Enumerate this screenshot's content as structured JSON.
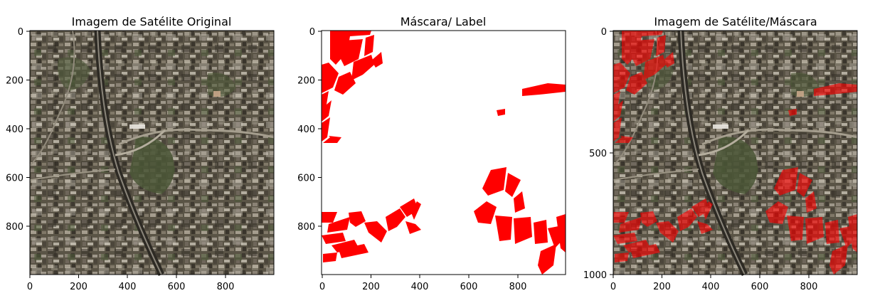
{
  "figure": {
    "panels": [
      {
        "title": "Imagem de Satélite Original",
        "content": "satellite-image",
        "xticks": [
          "0",
          "200",
          "400",
          "600",
          "800"
        ],
        "yticks": [
          "0",
          "200",
          "400",
          "600",
          "800"
        ]
      },
      {
        "title": "Máscara/ Label",
        "content": "mask",
        "xticks": [
          "0",
          "200",
          "400",
          "600",
          "800"
        ],
        "yticks": [
          "0",
          "200",
          "400",
          "600",
          "800"
        ]
      },
      {
        "title": "Imagem de Satélite/Máscara",
        "content": "overlay",
        "xticks": [
          "0",
          "200",
          "400",
          "600",
          "800"
        ],
        "yticks": [
          "0",
          "500",
          "1000"
        ]
      }
    ],
    "colors": {
      "mask_fill": "#ff0000",
      "satellite_base": "#5a5446",
      "overlay_tint": "#e0141a"
    }
  }
}
